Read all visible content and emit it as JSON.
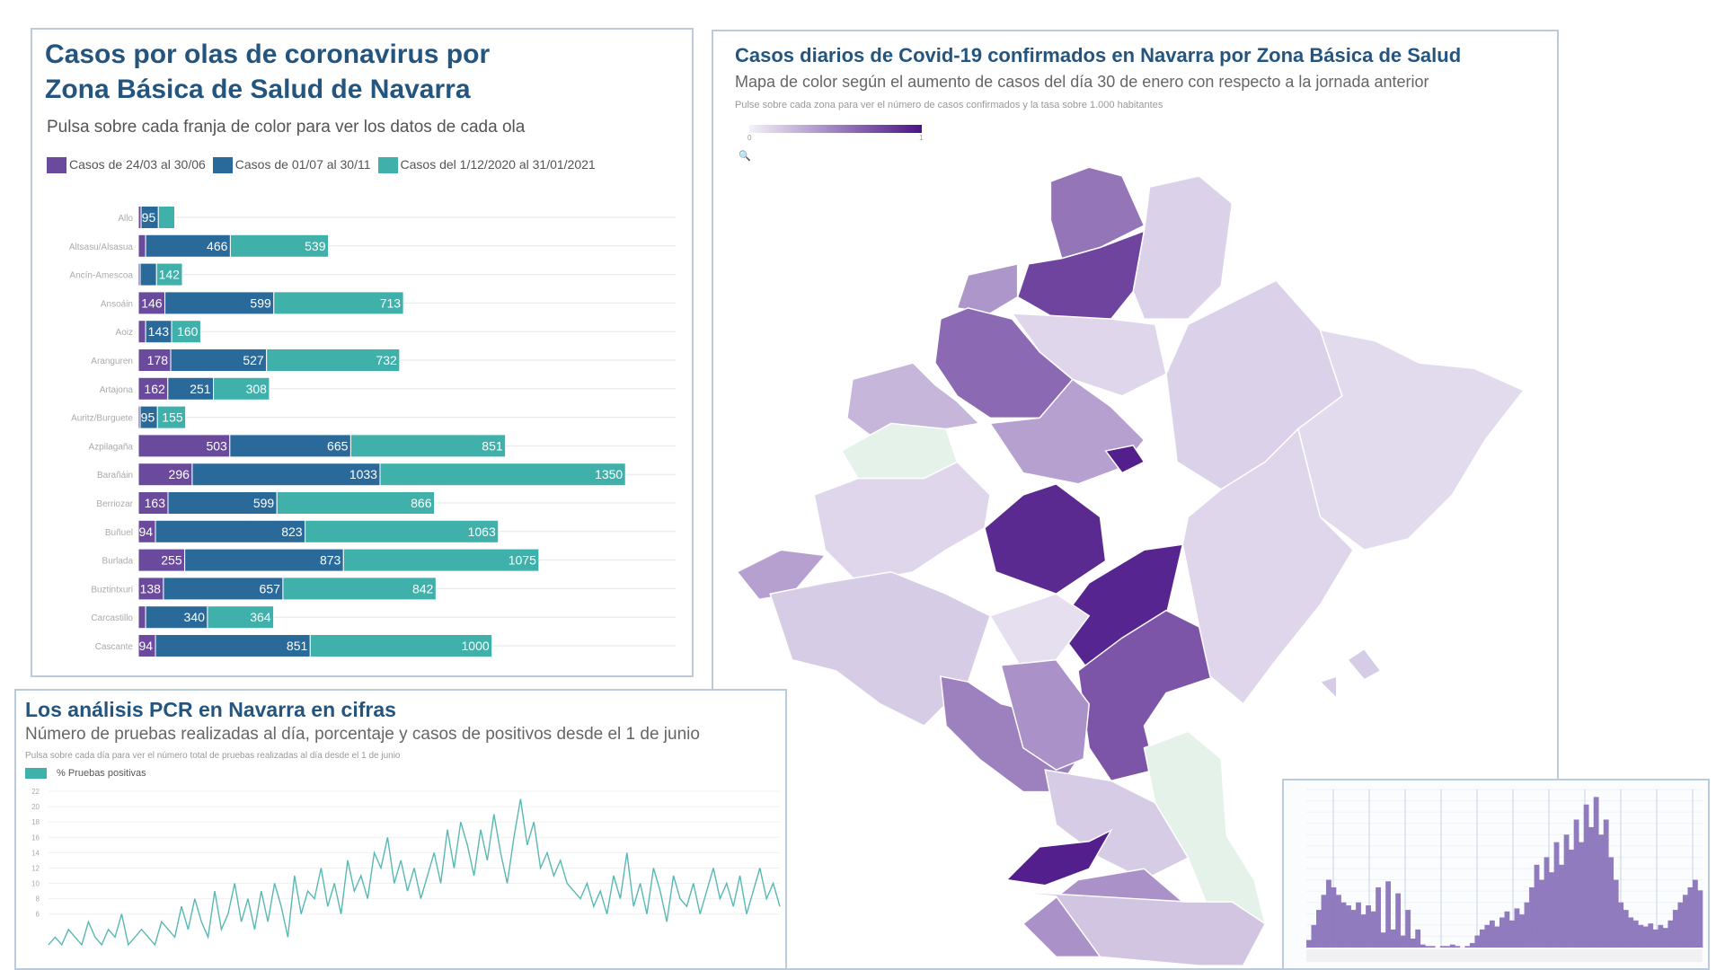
{
  "colors": {
    "wave1": "#6a4a9c",
    "wave2": "#2a6a9a",
    "wave3": "#3fb0aa",
    "title": "#24557f",
    "map_low": "#efecf6",
    "map_high": "#4a1486",
    "map_none": "#e5f2ea",
    "pcr_line": "#58b8b2",
    "inset_bar": "#8f7bbd"
  },
  "panel_waves": {
    "title_line1": "Casos por olas de coronavirus por",
    "title_line2": "Zona Básica de Salud de Navarra",
    "subtitle": "Pulsa sobre cada franja de color para ver los datos de cada ola"
  },
  "panel_map": {
    "title": "Casos diarios de Covid-19 confirmados en Navarra por Zona Básica de Salud",
    "subtitle": "Mapa de color según el aumento de casos del día 30 de enero con respecto a la jornada anterior",
    "hint": "Pulse sobre cada zona para ver el número de casos confirmados y la tasa sobre 1.000 habitantes",
    "scale_min": "0",
    "scale_max": "1",
    "zones": [
      0.55,
      0.78,
      0.12,
      0.4,
      0.6,
      0.25,
      -1,
      0.1,
      0.35,
      0.9,
      0.92,
      0.7,
      0.12,
      0.08,
      0.1,
      0.1,
      0.35,
      0.15,
      0.5,
      0.06,
      0.42,
      -1,
      0.15,
      0.95,
      0.42,
      0.18,
      0.15,
      0.15,
      0.95
    ]
  },
  "panel_pcr": {
    "title": "Los análisis PCR en Navarra en cifras",
    "subtitle": "Número de pruebas realizadas al día, porcentaje y casos de positivos desde el 1 de junio",
    "hint": "Pulsa sobre cada día para ver el número total de pruebas realizadas al día desde el 1 de junio"
  },
  "chart_data": [
    {
      "type": "bar",
      "stacked": true,
      "orientation": "horizontal",
      "legend": [
        "Casos de 24/03 al 30/06",
        "Casos de 01/07 al 30/11",
        "Casos del 1/12/2020 al 31/01/2021"
      ],
      "categories": [
        "Allo",
        "Altsasu/Alsasua",
        "Ancín-Amescoa",
        "Ansoáin",
        "Aoiz",
        "Aranguren",
        "Artajona",
        "Auritz/Burguete",
        "Azpilagaña",
        "Barañáin",
        "Berriozar",
        "Buñuel",
        "Burlada",
        "Buztintxuri",
        "Carcastillo",
        "Cascante"
      ],
      "series": [
        {
          "name": "Casos de 24/03 al 30/06",
          "values": [
            15,
            40,
            10,
            146,
            40,
            178,
            162,
            10,
            503,
            296,
            163,
            94,
            255,
            138,
            40,
            94
          ]
        },
        {
          "name": "Casos de 01/07 al 30/11",
          "values": [
            95,
            466,
            90,
            599,
            143,
            527,
            251,
            95,
            665,
            1033,
            599,
            823,
            873,
            657,
            340,
            851
          ]
        },
        {
          "name": "Casos del 1/12/2020 al 31/01/2021",
          "values": [
            90,
            539,
            142,
            713,
            160,
            732,
            308,
            155,
            851,
            1350,
            866,
            1063,
            1075,
            842,
            364,
            1000
          ]
        }
      ],
      "legend_position": "top-left",
      "grid": true
    },
    {
      "type": "line",
      "legend": [
        "% Pruebas positivas"
      ],
      "yticks": [
        6,
        8,
        10,
        12,
        14,
        16,
        18,
        20,
        22
      ],
      "ylim": [
        0,
        23
      ],
      "values": [
        2,
        3,
        2,
        4,
        3,
        2,
        5,
        3,
        2,
        4,
        3,
        6,
        2,
        3,
        4,
        3,
        2,
        5,
        4,
        3,
        7,
        4,
        8,
        5,
        3,
        9,
        4,
        6,
        10,
        5,
        8,
        4,
        9,
        5,
        10,
        7,
        3,
        11,
        6,
        9,
        8,
        12,
        7,
        10,
        6,
        13,
        9,
        11,
        8,
        14,
        12,
        16,
        10,
        13,
        9,
        12,
        8,
        11,
        14,
        10,
        17,
        12,
        18,
        15,
        11,
        17,
        13,
        19,
        14,
        10,
        16,
        21,
        15,
        18,
        12,
        14,
        11,
        13,
        10,
        9,
        8,
        10,
        7,
        9,
        6,
        11,
        8,
        14,
        7,
        10,
        6,
        12,
        9,
        5,
        11,
        8,
        7,
        10,
        6,
        9,
        12,
        8,
        10,
        7,
        11,
        6,
        9,
        12,
        8,
        10,
        7
      ]
    },
    {
      "type": "bar",
      "values": [
        5,
        15,
        25,
        35,
        45,
        40,
        35,
        30,
        28,
        25,
        30,
        22,
        28,
        24,
        40,
        10,
        44,
        12,
        36,
        8,
        25,
        6,
        12,
        2,
        1,
        1,
        0,
        1,
        1,
        2,
        1,
        0,
        1,
        3,
        8,
        12,
        15,
        18,
        14,
        20,
        24,
        18,
        26,
        22,
        30,
        40,
        55,
        45,
        60,
        50,
        70,
        55,
        75,
        65,
        85,
        70,
        95,
        80,
        100,
        75,
        85,
        60,
        45,
        30,
        25,
        20,
        18,
        15,
        14,
        16,
        12,
        15,
        13,
        18,
        25,
        30,
        35,
        40,
        45,
        38
      ],
      "ylim": [
        0,
        105
      ]
    }
  ]
}
